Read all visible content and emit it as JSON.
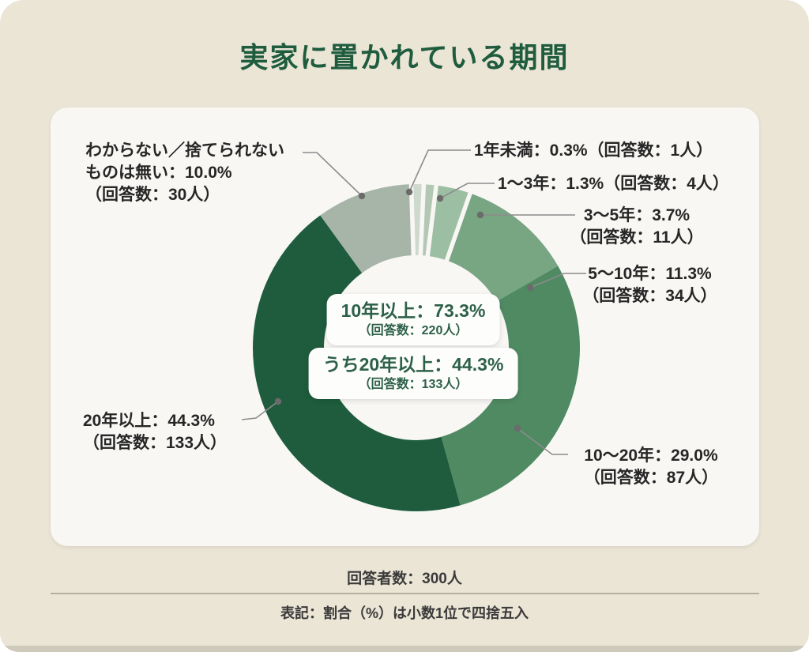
{
  "title": "実家に置かれている期間",
  "chart_data": {
    "type": "pie",
    "donut": true,
    "title": "実家に置かれている期間",
    "total_respondents": 300,
    "segments": [
      {
        "label": "1年未満",
        "percent": 0.3,
        "count": 1,
        "color": "#cdd9cd"
      },
      {
        "label": "1〜3年",
        "percent": 1.3,
        "count": 4,
        "color": "#b3c8b4"
      },
      {
        "label": "3〜5年",
        "percent": 3.7,
        "count": 11,
        "color": "#9cbea2"
      },
      {
        "label": "5〜10年",
        "percent": 11.3,
        "count": 34,
        "color": "#78a582"
      },
      {
        "label": "10〜20年",
        "percent": 29.0,
        "count": 87,
        "color": "#4f8a62"
      },
      {
        "label": "20年以上",
        "percent": 44.3,
        "count": 133,
        "color": "#1e5c3d"
      },
      {
        "label": "わからない／捨てられないものは無い",
        "percent": 10.0,
        "count": 30,
        "color": "#a6b5a7"
      }
    ],
    "center_annotations": [
      {
        "label": "10年以上",
        "percent": 73.3,
        "count": 220
      },
      {
        "label": "うち20年以上",
        "percent": 44.3,
        "count": 133
      }
    ]
  },
  "labels": {
    "wakaranai": {
      "line1": "わからない／捨てられない",
      "line2": "ものは無い：10.0%",
      "line3": "（回答数：30人）"
    },
    "y1": {
      "line1": "1年未満：0.3%（回答数：1人）"
    },
    "y1_3": {
      "line1": "1〜3年：1.3%（回答数：4人）"
    },
    "y3_5": {
      "line1": "3〜5年：3.7%",
      "line2": "（回答数：11人）"
    },
    "y5_10": {
      "line1": "5〜10年：11.3%",
      "line2": "（回答数：34人）"
    },
    "y10_20": {
      "line1": "10〜20年：29.0%",
      "line2": "（回答数：87人）"
    },
    "y20": {
      "line1": "20年以上：44.3%",
      "line2": "（回答数：133人）"
    }
  },
  "center_box1": {
    "line1": "10年以上：73.3%",
    "line2": "（回答数：220人）"
  },
  "center_box2": {
    "line1": "うち20年以上：44.3%",
    "line2": "（回答数：133人）"
  },
  "footer": {
    "respondents": "回答者数：300人",
    "note": "表記：割合（%）は小数1位で四捨五入"
  },
  "colors": {
    "title_green": "#1f5c3e",
    "page_beige": "#ebe5d6",
    "card_white": "#f8f7f4",
    "label_text": "#262626",
    "center_text_green": "#2d6049",
    "leader_line": "#8c8c8c"
  }
}
